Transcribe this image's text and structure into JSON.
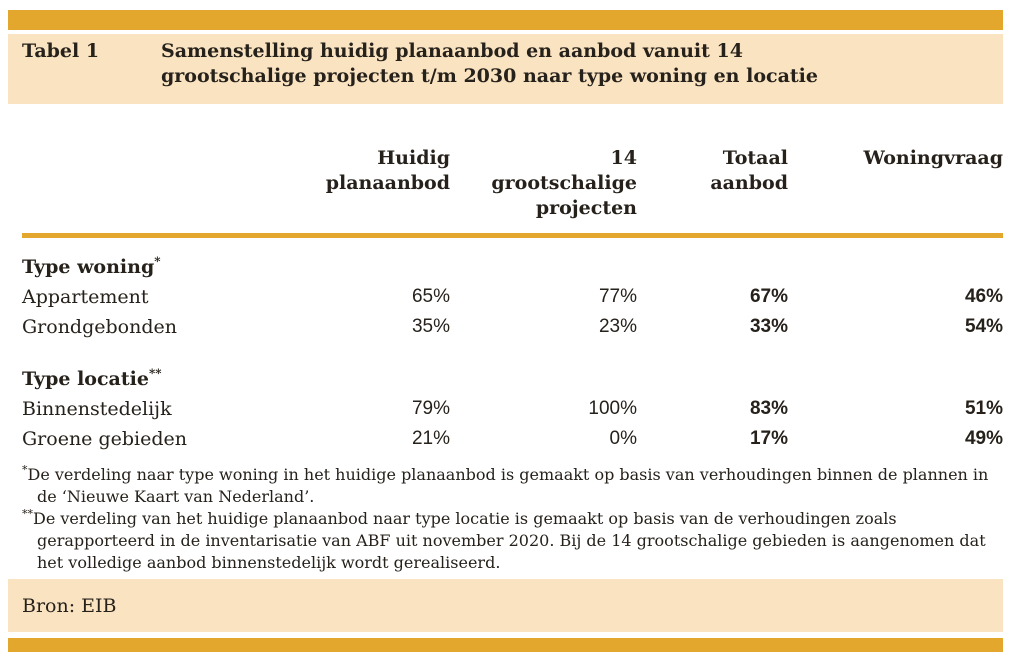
{
  "caption": {
    "label": "Tabel 1",
    "title": "Samenstelling huidig planaanbod en aanbod vanuit 14 grootschalige projecten t/m 2030 naar type woning en locatie"
  },
  "columns": [
    "Huidig planaanbod",
    "14 grootschalige projecten",
    "Totaal aanbod",
    "Woningvraag"
  ],
  "sections": [
    {
      "header": "Type woning",
      "marker": "*",
      "rows": [
        {
          "label": "Appartement",
          "values": [
            "65%",
            "77%",
            "67%",
            "46%"
          ]
        },
        {
          "label": "Grondgebonden",
          "values": [
            "35%",
            "23%",
            "33%",
            "54%"
          ]
        }
      ]
    },
    {
      "header": "Type locatie",
      "marker": "**",
      "rows": [
        {
          "label": "Binnenstedelijk",
          "values": [
            "79%",
            "100%",
            "83%",
            "51%"
          ]
        },
        {
          "label": "Groene gebieden",
          "values": [
            "21%",
            "0%",
            "17%",
            "49%"
          ]
        }
      ]
    }
  ],
  "footnotes": [
    {
      "marker": "*",
      "text": "De verdeling naar type woning in het huidige planaanbod is gemaakt op basis van verhoudingen binnen de plannen in de ‘Nieuwe Kaart van Nederland’."
    },
    {
      "marker": "**",
      "text": "De verdeling van het huidige planaanbod naar type locatie is gemaakt op basis van de verhoudingen zoals gerapporteerd in de inventarisatie van ABF uit november 2020. Bij de 14 grootschalige gebieden is aangenomen dat het volledige aanbod binnenstedelijk wordt gerealiseerd."
    }
  ],
  "source": "Bron: EIB",
  "colors": {
    "accent_gold": "#E3A72D",
    "band_peach": "#F9E3C1",
    "text": "#26211B"
  },
  "chart_data": {
    "type": "table",
    "title": "Tabel 1 — Samenstelling huidig planaanbod en aanbod vanuit 14 grootschalige projecten t/m 2030 naar type woning en locatie",
    "columns": [
      "Huidig planaanbod",
      "14 grootschalige projecten",
      "Totaal aanbod",
      "Woningvraag"
    ],
    "groups": [
      {
        "group": "Type woning*",
        "rows": [
          {
            "label": "Appartement",
            "values": [
              "65%",
              "77%",
              "67%",
              "46%"
            ]
          },
          {
            "label": "Grondgebonden",
            "values": [
              "35%",
              "23%",
              "33%",
              "54%"
            ]
          }
        ]
      },
      {
        "group": "Type locatie**",
        "rows": [
          {
            "label": "Binnenstedelijk",
            "values": [
              "79%",
              "100%",
              "83%",
              "51%"
            ]
          },
          {
            "label": "Groene gebieden",
            "values": [
              "21%",
              "0%",
              "17%",
              "49%"
            ]
          }
        ]
      }
    ],
    "source": "Bron: EIB"
  }
}
